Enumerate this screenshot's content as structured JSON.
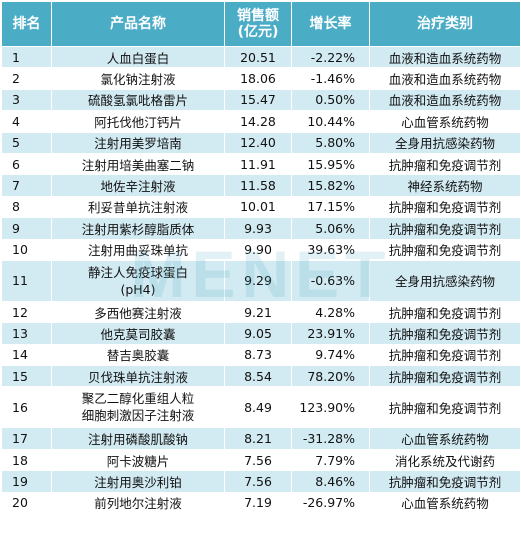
{
  "header": {
    "rank": "排名",
    "name": "产品名称",
    "sales_line1": "销售额",
    "sales_line2": "(亿元)",
    "growth": "增长率",
    "category": "治疗类别"
  },
  "rows": [
    {
      "rank": "1",
      "name": "人血白蛋白",
      "sales": "20.51",
      "growth": "-2.22%",
      "category": "血液和造血系统药物"
    },
    {
      "rank": "2",
      "name": "氯化钠注射液",
      "sales": "18.06",
      "growth": "-1.46%",
      "category": "血液和造血系统药物"
    },
    {
      "rank": "3",
      "name": "硫酸氢氯吡格雷片",
      "sales": "15.47",
      "growth": "0.50%",
      "category": "血液和造血系统药物"
    },
    {
      "rank": "4",
      "name": "阿托伐他汀钙片",
      "sales": "14.28",
      "growth": "10.44%",
      "category": "心血管系统药物"
    },
    {
      "rank": "5",
      "name": "注射用美罗培南",
      "sales": "12.40",
      "growth": "5.80%",
      "category": "全身用抗感染药物"
    },
    {
      "rank": "6",
      "name": "注射用培美曲塞二钠",
      "sales": "11.91",
      "growth": "15.95%",
      "category": "抗肿瘤和免疫调节剂"
    },
    {
      "rank": "7",
      "name": "地佐辛注射液",
      "sales": "11.58",
      "growth": "15.82%",
      "category": "神经系统药物"
    },
    {
      "rank": "8",
      "name": "利妥昔单抗注射液",
      "sales": "10.01",
      "growth": "17.15%",
      "category": "抗肿瘤和免疫调节剂"
    },
    {
      "rank": "9",
      "name": "注射用紫杉醇脂质体",
      "sales": "9.93",
      "growth": "5.06%",
      "category": "抗肿瘤和免疫调节剂"
    },
    {
      "rank": "10",
      "name": "注射用曲妥珠单抗",
      "sales": "9.90",
      "growth": "39.63%",
      "category": "抗肿瘤和免疫调节剂"
    },
    {
      "rank": "11",
      "name_line1": "静注人免疫球蛋白",
      "name_line2": "(pH4)",
      "sales": "9.29",
      "growth": "-0.63%",
      "category": "全身用抗感染药物"
    },
    {
      "rank": "12",
      "name": "多西他赛注射液",
      "sales": "9.21",
      "growth": "4.28%",
      "category": "抗肿瘤和免疫调节剂"
    },
    {
      "rank": "13",
      "name": "他克莫司胶囊",
      "sales": "9.05",
      "growth": "23.91%",
      "category": "抗肿瘤和免疫调节剂"
    },
    {
      "rank": "14",
      "name": "替吉奥胶囊",
      "sales": "8.73",
      "growth": "9.74%",
      "category": "抗肿瘤和免疫调节剂"
    },
    {
      "rank": "15",
      "name": "贝伐珠单抗注射液",
      "sales": "8.54",
      "growth": "78.20%",
      "category": "抗肿瘤和免疫调节剂"
    },
    {
      "rank": "16",
      "name_line1": "聚乙二醇化重组人粒",
      "name_line2": "细胞刺激因子注射液",
      "sales": "8.49",
      "growth": "123.90%",
      "category": "抗肿瘤和免疫调节剂"
    },
    {
      "rank": "17",
      "name": "注射用磷酸肌酸钠",
      "sales": "8.21",
      "growth": "-31.28%",
      "category": "心血管系统药物"
    },
    {
      "rank": "18",
      "name": "阿卡波糖片",
      "sales": "7.56",
      "growth": "7.79%",
      "category": "消化系统及代谢药"
    },
    {
      "rank": "19",
      "name": "注射用奥沙利铂",
      "sales": "7.56",
      "growth": "8.46%",
      "category": "抗肿瘤和免疫调节剂"
    },
    {
      "rank": "20",
      "name": "前列地尔注射液",
      "sales": "7.19",
      "growth": "-26.97%",
      "category": "心血管系统药物"
    }
  ],
  "watermark": "MENET",
  "colors": {
    "header_bg": "#4bacc6",
    "stripe_bg": "#d2eaf1",
    "watermark": "#4bacc6"
  }
}
